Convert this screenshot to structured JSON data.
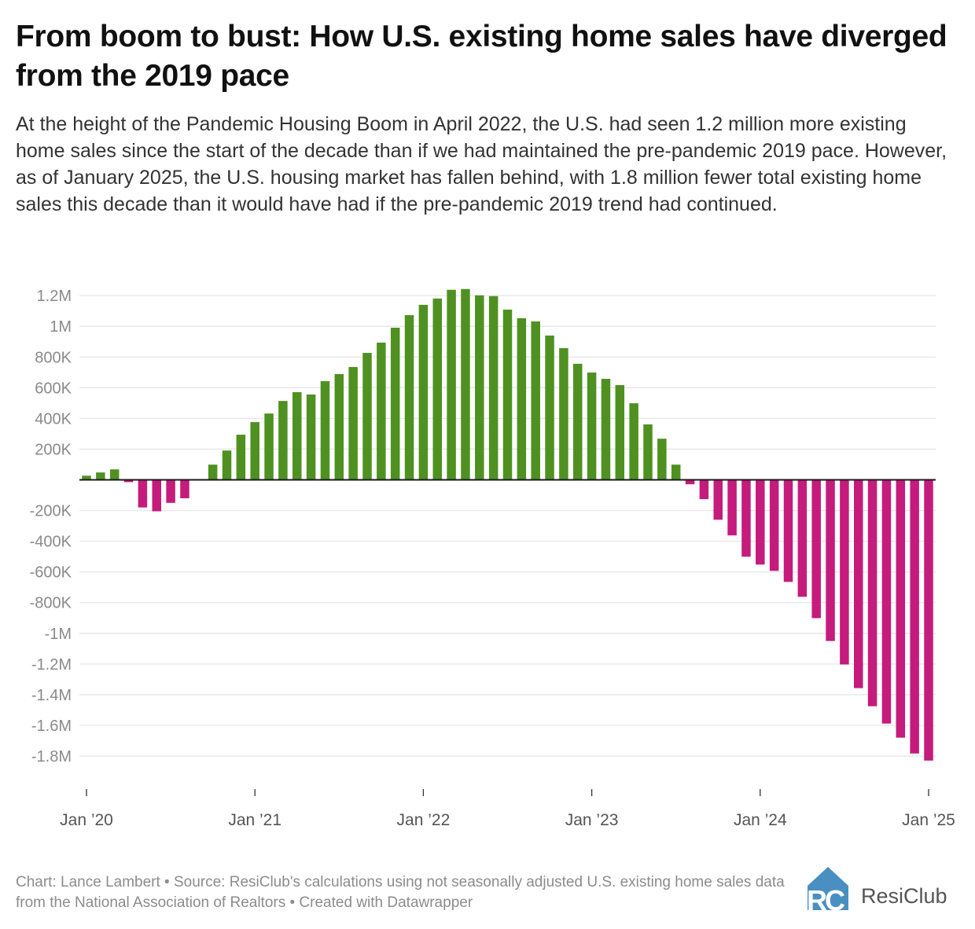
{
  "title": "From boom to bust: How U.S. existing home sales have diverged from the 2019 pace",
  "subtitle": "At the height of the Pandemic Housing Boom in April 2022, the U.S. had seen 1.2 million more existing home sales since the start of the decade than if we had maintained the pre-pandemic 2019 pace. However, as of January 2025, the U.S. housing market has fallen behind, with 1.8 million fewer total existing home sales this decade than it would have had if the pre-pandemic 2019 trend had continued.",
  "footer": "Chart: Lance Lambert • Source: ResiClub's calculations using not seasonally adjusted U.S. existing home sales data from the National Association of Realtors • Created with Datawrapper",
  "logo": {
    "mark": "RC",
    "name": "ResiClub",
    "color": "#4a8fc2"
  },
  "colors": {
    "positive": "#4e9121",
    "negative": "#c51b7d",
    "grid": "#e6e6e6",
    "zero_line": "#1a1a1a"
  },
  "chart_data": {
    "type": "bar",
    "title": "",
    "xlabel": "",
    "ylabel": "",
    "x_start": "Jan 2020",
    "x_end": "Jan 2025",
    "frequency": "monthly",
    "ylim": [
      -1900000,
      1300000
    ],
    "grid": true,
    "y_ticks": [
      {
        "value": 1200000,
        "label": "1.2M"
      },
      {
        "value": 1000000,
        "label": "1M"
      },
      {
        "value": 800000,
        "label": "800K"
      },
      {
        "value": 600000,
        "label": "600K"
      },
      {
        "value": 400000,
        "label": "400K"
      },
      {
        "value": 200000,
        "label": "200K"
      },
      {
        "value": -200000,
        "label": "-200K"
      },
      {
        "value": -400000,
        "label": "-400K"
      },
      {
        "value": -600000,
        "label": "-600K"
      },
      {
        "value": -800000,
        "label": "-800K"
      },
      {
        "value": -1000000,
        "label": "-1M"
      },
      {
        "value": -1200000,
        "label": "-1.2M"
      },
      {
        "value": -1400000,
        "label": "-1.4M"
      },
      {
        "value": -1600000,
        "label": "-1.6M"
      },
      {
        "value": -1800000,
        "label": "-1.8M"
      }
    ],
    "x_ticks": [
      {
        "index": 0,
        "label": "Jan ’20"
      },
      {
        "index": 12,
        "label": "Jan ’21"
      },
      {
        "index": 24,
        "label": "Jan ’22"
      },
      {
        "index": 36,
        "label": "Jan ’23"
      },
      {
        "index": 48,
        "label": "Jan ’24"
      },
      {
        "index": 60,
        "label": "Jan ’25"
      }
    ],
    "values": [
      27000,
      48000,
      68000,
      -15000,
      -180000,
      -205000,
      -150000,
      -120000,
      0,
      99000,
      191000,
      294000,
      376000,
      432000,
      514000,
      571000,
      556000,
      643000,
      689000,
      735000,
      827000,
      894000,
      991000,
      1073000,
      1140000,
      1181000,
      1238000,
      1243000,
      1202000,
      1197000,
      1109000,
      1053000,
      1032000,
      940000,
      858000,
      756000,
      699000,
      658000,
      617000,
      499000,
      361000,
      268000,
      99000,
      -29000,
      -126000,
      -260000,
      -362000,
      -501000,
      -552000,
      -593000,
      -665000,
      -762000,
      -901000,
      -1050000,
      -1203000,
      -1357000,
      -1475000,
      -1588000,
      -1680000,
      -1783000,
      -1829000
    ]
  }
}
